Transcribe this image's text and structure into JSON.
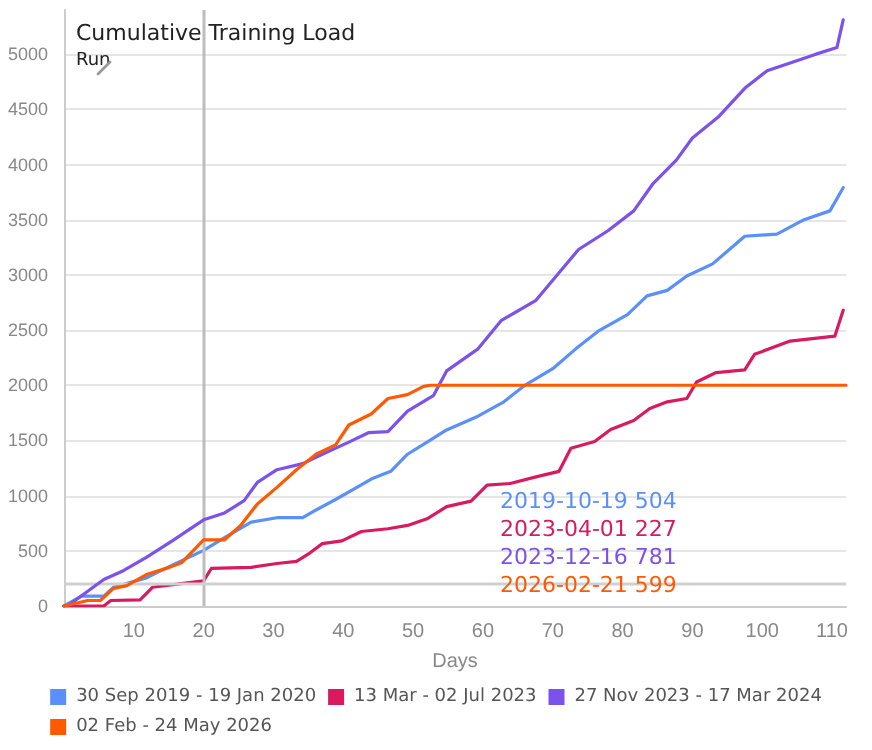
{
  "chart_data": {
    "type": "line",
    "title": "Cumulative Training Load",
    "subtitle": "Run",
    "xlabel": "Days",
    "xlim": [
      0,
      112
    ],
    "xticks": [
      10,
      20,
      30,
      40,
      50,
      60,
      70,
      80,
      90,
      100,
      110
    ],
    "ylim": [
      0,
      5400
    ],
    "yticks": [
      0,
      500,
      1000,
      1500,
      2000,
      2500,
      3000,
      3500,
      4000,
      4500,
      5000
    ],
    "grid": "y",
    "legend": "bottom",
    "marker": "none",
    "line_style": "solid",
    "ref_lines": [
      {
        "axis": "x",
        "value": 20,
        "label": null,
        "color": "#bdbdbd"
      },
      {
        "axis": "y",
        "value": 200,
        "label": null,
        "color": "#d0d0d0"
      }
    ],
    "annotations": [
      "2019-10-19 504",
      "2023-04-01 227",
      "2023-12-16 781",
      "2026-02-21 599"
    ],
    "series": [
      {
        "name": "30 Sep 2019 - 19 Jan 2020",
        "color": "#5b8ff9",
        "x": [
          0,
          2.5,
          5.7,
          7.1,
          11.8,
          15.5,
          20,
          23,
          26.8,
          30.5,
          34.2,
          36.1,
          38.9,
          41.7,
          44,
          46.8,
          49.2,
          52,
          54.8,
          59.3,
          63,
          66,
          70,
          73.3,
          76.5,
          80.7,
          83.5,
          86.4,
          89.2,
          92.9,
          97.5,
          102.1,
          106,
          109.7,
          111.6
        ],
        "values": [
          0,
          90,
          90,
          170,
          255,
          370,
          504,
          620,
          760,
          800,
          800,
          870,
          965,
          1065,
          1150,
          1220,
          1375,
          1485,
          1595,
          1720,
          1850,
          2000,
          2150,
          2330,
          2490,
          2640,
          2810,
          2860,
          2990,
          3100,
          3350,
          3370,
          3500,
          3580,
          3790
        ]
      },
      {
        "name": "13 Mar - 02 Jul 2023",
        "color": "#d81b60",
        "x": [
          0,
          5.7,
          6.7,
          10.9,
          12.7,
          16.5,
          20,
          21.1,
          26.8,
          30.5,
          33.3,
          35.2,
          37,
          39.8,
          42.6,
          46.4,
          49.2,
          52,
          54.8,
          58.3,
          60.6,
          63.9,
          67.6,
          70.9,
          72.6,
          76,
          78.3,
          81.6,
          83.9,
          86.4,
          89.2,
          90.6,
          93.4,
          97.5,
          98.9,
          104,
          110.4,
          111.6
        ],
        "values": [
          0,
          0,
          50,
          55,
          170,
          200,
          227,
          340,
          350,
          385,
          405,
          480,
          565,
          590,
          675,
          700,
          730,
          790,
          900,
          950,
          1095,
          1110,
          1170,
          1220,
          1430,
          1490,
          1600,
          1680,
          1790,
          1850,
          1880,
          2030,
          2115,
          2140,
          2280,
          2400,
          2445,
          2680
        ]
      },
      {
        "name": "27 Nov 2023 - 17 Mar 2024",
        "color": "#7b52ea",
        "x": [
          0,
          0.6,
          5.7,
          8.5,
          11.8,
          15.5,
          20,
          23,
          25.8,
          27.7,
          30.5,
          34.2,
          37,
          40.8,
          43.6,
          46.4,
          49.2,
          52.9,
          54.8,
          59.3,
          62.6,
          67.6,
          70.9,
          73.7,
          77.9,
          81.6,
          84.4,
          87.7,
          90,
          93.7,
          97.5,
          100.7,
          104,
          107.7,
          110.7,
          111.6
        ],
        "values": [
          0,
          5,
          240,
          320,
          440,
          590,
          781,
          843,
          955,
          1120,
          1235,
          1290,
          1375,
          1485,
          1570,
          1580,
          1765,
          1905,
          2130,
          2330,
          2585,
          2770,
          3020,
          3230,
          3400,
          3580,
          3830,
          4040,
          4240,
          4430,
          4690,
          4850,
          4920,
          5000,
          5060,
          5310
        ]
      },
      {
        "name": "02 Feb - 24 May 2026",
        "color": "#ff5a00",
        "x": [
          0,
          3.4,
          5.2,
          7.1,
          9,
          11.8,
          15.1,
          16.9,
          20,
          23,
          25.3,
          27.7,
          30.5,
          33.3,
          36.1,
          38.9,
          40.8,
          44,
          46.4,
          49.2,
          51.5,
          52.5,
          112
        ],
        "values": [
          0,
          50,
          50,
          160,
          185,
          285,
          350,
          395,
          599,
          600,
          730,
          925,
          1075,
          1235,
          1375,
          1460,
          1640,
          1740,
          1880,
          1915,
          1990,
          2000,
          2000
        ]
      }
    ]
  }
}
